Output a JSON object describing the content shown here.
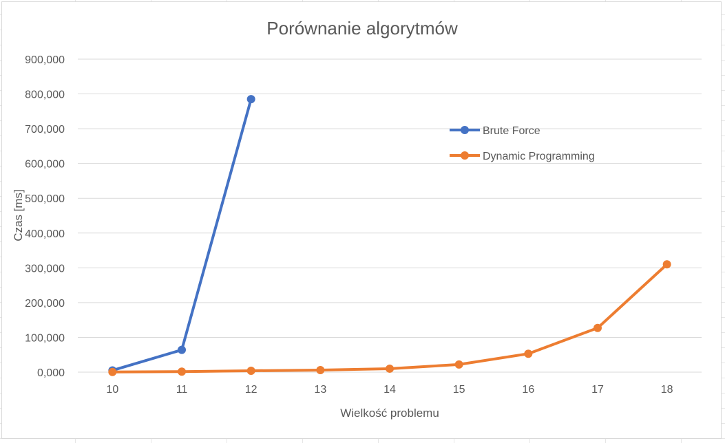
{
  "chart_data": {
    "type": "line",
    "title": "Porównanie algorytmów",
    "xlabel": "Wielkość problemu",
    "ylabel": "Czas [ms]",
    "categories": [
      "10",
      "11",
      "12",
      "13",
      "14",
      "15",
      "16",
      "17",
      "18"
    ],
    "y_ticks": [
      "0,000",
      "100,000",
      "200,000",
      "300,000",
      "400,000",
      "500,000",
      "600,000",
      "700,000",
      "800,000",
      "900,000"
    ],
    "ylim": [
      0,
      900000
    ],
    "grid": true,
    "legend_position": "right",
    "series": [
      {
        "name": "Brute Force",
        "color": "#4472c4",
        "values": [
          5000,
          64000,
          785000,
          null,
          null,
          null,
          null,
          null,
          null
        ]
      },
      {
        "name": "Dynamic Programming",
        "color": "#ed7d31",
        "values": [
          500,
          1500,
          4000,
          6000,
          10000,
          22000,
          53000,
          127000,
          310000
        ]
      }
    ]
  }
}
